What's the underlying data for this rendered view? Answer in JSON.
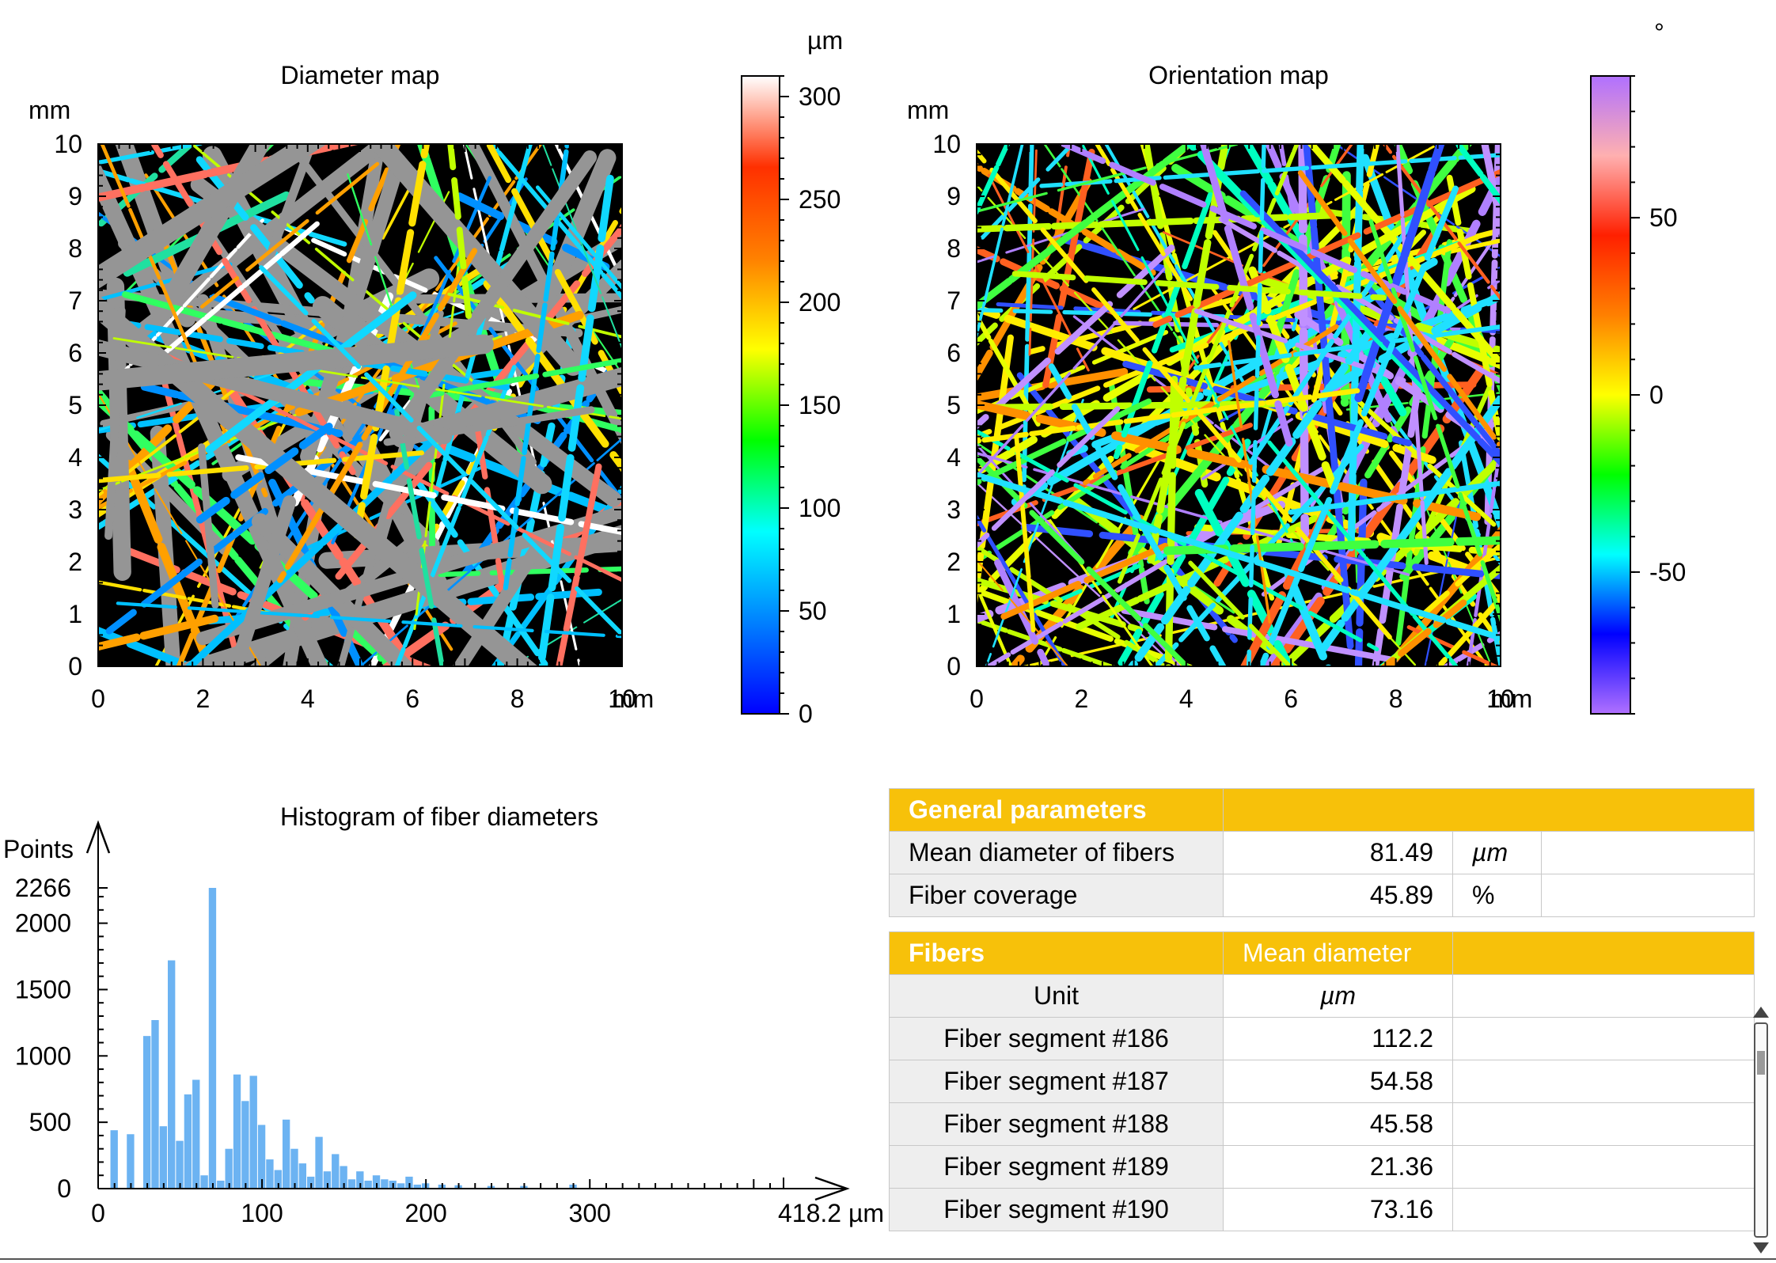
{
  "diameter_map": {
    "title": "Diameter map",
    "y_unit": "mm",
    "x_unit": "mm",
    "x_ticks": [
      "0",
      "2",
      "4",
      "6",
      "8",
      "10"
    ],
    "y_ticks": [
      "0",
      "1",
      "2",
      "3",
      "4",
      "5",
      "6",
      "7",
      "8",
      "9",
      "10"
    ],
    "colorbar": {
      "unit": "µm",
      "ticks": [
        "0",
        "50",
        "100",
        "150",
        "200",
        "250",
        "300"
      ],
      "range": [
        0,
        310
      ],
      "colors": [
        "#0000ff",
        "#0080ff",
        "#00ffff",
        "#00ff00",
        "#ffff00",
        "#ff8000",
        "#ff3000",
        "#ffffff"
      ]
    }
  },
  "orientation_map": {
    "title": "Orientation map",
    "y_unit": "mm",
    "x_unit": "mm",
    "x_ticks": [
      "0",
      "2",
      "4",
      "6",
      "8",
      "10"
    ],
    "y_ticks": [
      "0",
      "1",
      "2",
      "3",
      "4",
      "5",
      "6",
      "7",
      "8",
      "9",
      "10"
    ],
    "colorbar": {
      "unit": "°",
      "ticks": [
        "-50",
        "0",
        "50"
      ],
      "range": [
        -90,
        90
      ],
      "colors": [
        "#b070ff",
        "#0000ff",
        "#00ffff",
        "#00ff00",
        "#ffff00",
        "#ff8000",
        "#ff2000",
        "#ffb0b0",
        "#b070ff"
      ]
    }
  },
  "chart_data": {
    "type": "bar",
    "title": "Histogram of fiber diameters",
    "ylabel": "Points",
    "xlabel": "µm",
    "x_ticks": [
      "0",
      "100",
      "200",
      "300",
      "418.2 µm"
    ],
    "y_ticks": [
      "0",
      "500",
      "1000",
      "1500",
      "2000",
      "2266"
    ],
    "xlim": [
      0,
      418.2
    ],
    "ylim": [
      0,
      2266
    ],
    "color": "#6cb3f2",
    "bin_width": 5,
    "x": [
      10,
      20,
      30,
      35,
      40,
      45,
      50,
      55,
      60,
      65,
      70,
      75,
      80,
      85,
      90,
      95,
      100,
      105,
      110,
      115,
      120,
      125,
      130,
      135,
      140,
      145,
      150,
      155,
      160,
      165,
      170,
      175,
      180,
      185,
      190,
      195,
      200,
      210,
      220,
      240,
      260,
      290
    ],
    "values": [
      440,
      410,
      1150,
      1270,
      470,
      1720,
      360,
      710,
      820,
      100,
      2266,
      60,
      300,
      860,
      660,
      850,
      480,
      220,
      140,
      520,
      300,
      190,
      90,
      390,
      130,
      260,
      170,
      70,
      130,
      60,
      100,
      70,
      60,
      40,
      90,
      30,
      40,
      30,
      25,
      20,
      20,
      30
    ]
  },
  "general_parameters": {
    "header": "General parameters",
    "rows": [
      {
        "label": "Mean diameter of fibers",
        "value": "81.49",
        "unit": "µm"
      },
      {
        "label": "Fiber coverage",
        "value": "45.89",
        "unit": "%"
      }
    ]
  },
  "fibers_table": {
    "header": "Fibers",
    "column": "Mean diameter",
    "unit_label": "Unit",
    "unit_value": "µm",
    "rows": [
      {
        "label": "Fiber segment #186",
        "value": "112.2"
      },
      {
        "label": "Fiber segment #187",
        "value": "54.58"
      },
      {
        "label": "Fiber segment #188",
        "value": "45.58"
      },
      {
        "label": "Fiber segment #189",
        "value": "21.36"
      },
      {
        "label": "Fiber segment #190",
        "value": "73.16"
      }
    ]
  }
}
